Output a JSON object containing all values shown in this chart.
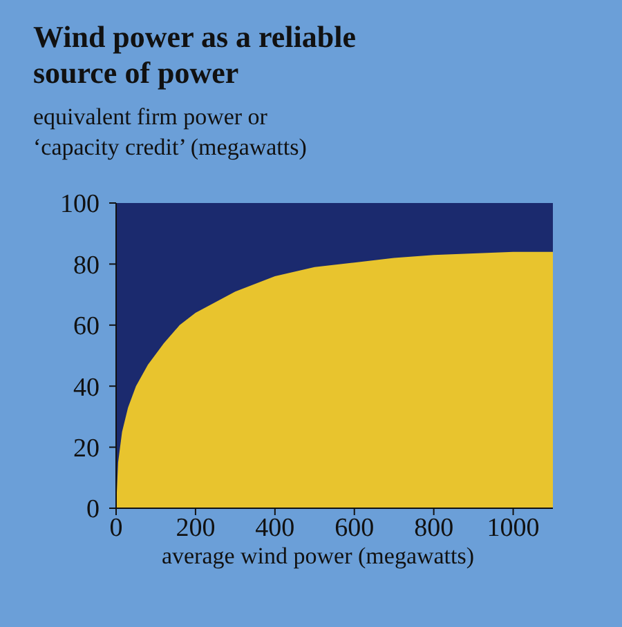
{
  "chart_data": {
    "type": "area",
    "title": "Wind power as a reliable source of power",
    "ylabel": "equivalent firm power or ‘capacity credit’ (megawatts)",
    "xlabel": "average wind power (megawatts)",
    "x": [
      0,
      5,
      15,
      30,
      50,
      80,
      120,
      160,
      200,
      300,
      400,
      500,
      600,
      700,
      800,
      900,
      1000,
      1100
    ],
    "series": [
      {
        "color": "#e8c42e",
        "values": [
          0,
          15,
          25,
          33,
          40,
          47,
          54,
          60,
          64,
          71,
          76,
          79,
          80.5,
          82,
          83,
          83.5,
          84,
          84
        ]
      }
    ],
    "xlim": [
      0,
      1100
    ],
    "ylim": [
      0,
      100
    ],
    "xticks": [
      0,
      200,
      400,
      600,
      800,
      1000
    ],
    "yticks": [
      0,
      20,
      40,
      60,
      80,
      100
    ],
    "grid": false,
    "bands": [
      {
        "axis": "y",
        "from": 0,
        "to": 100,
        "color": "#1b2a6e"
      }
    ]
  }
}
